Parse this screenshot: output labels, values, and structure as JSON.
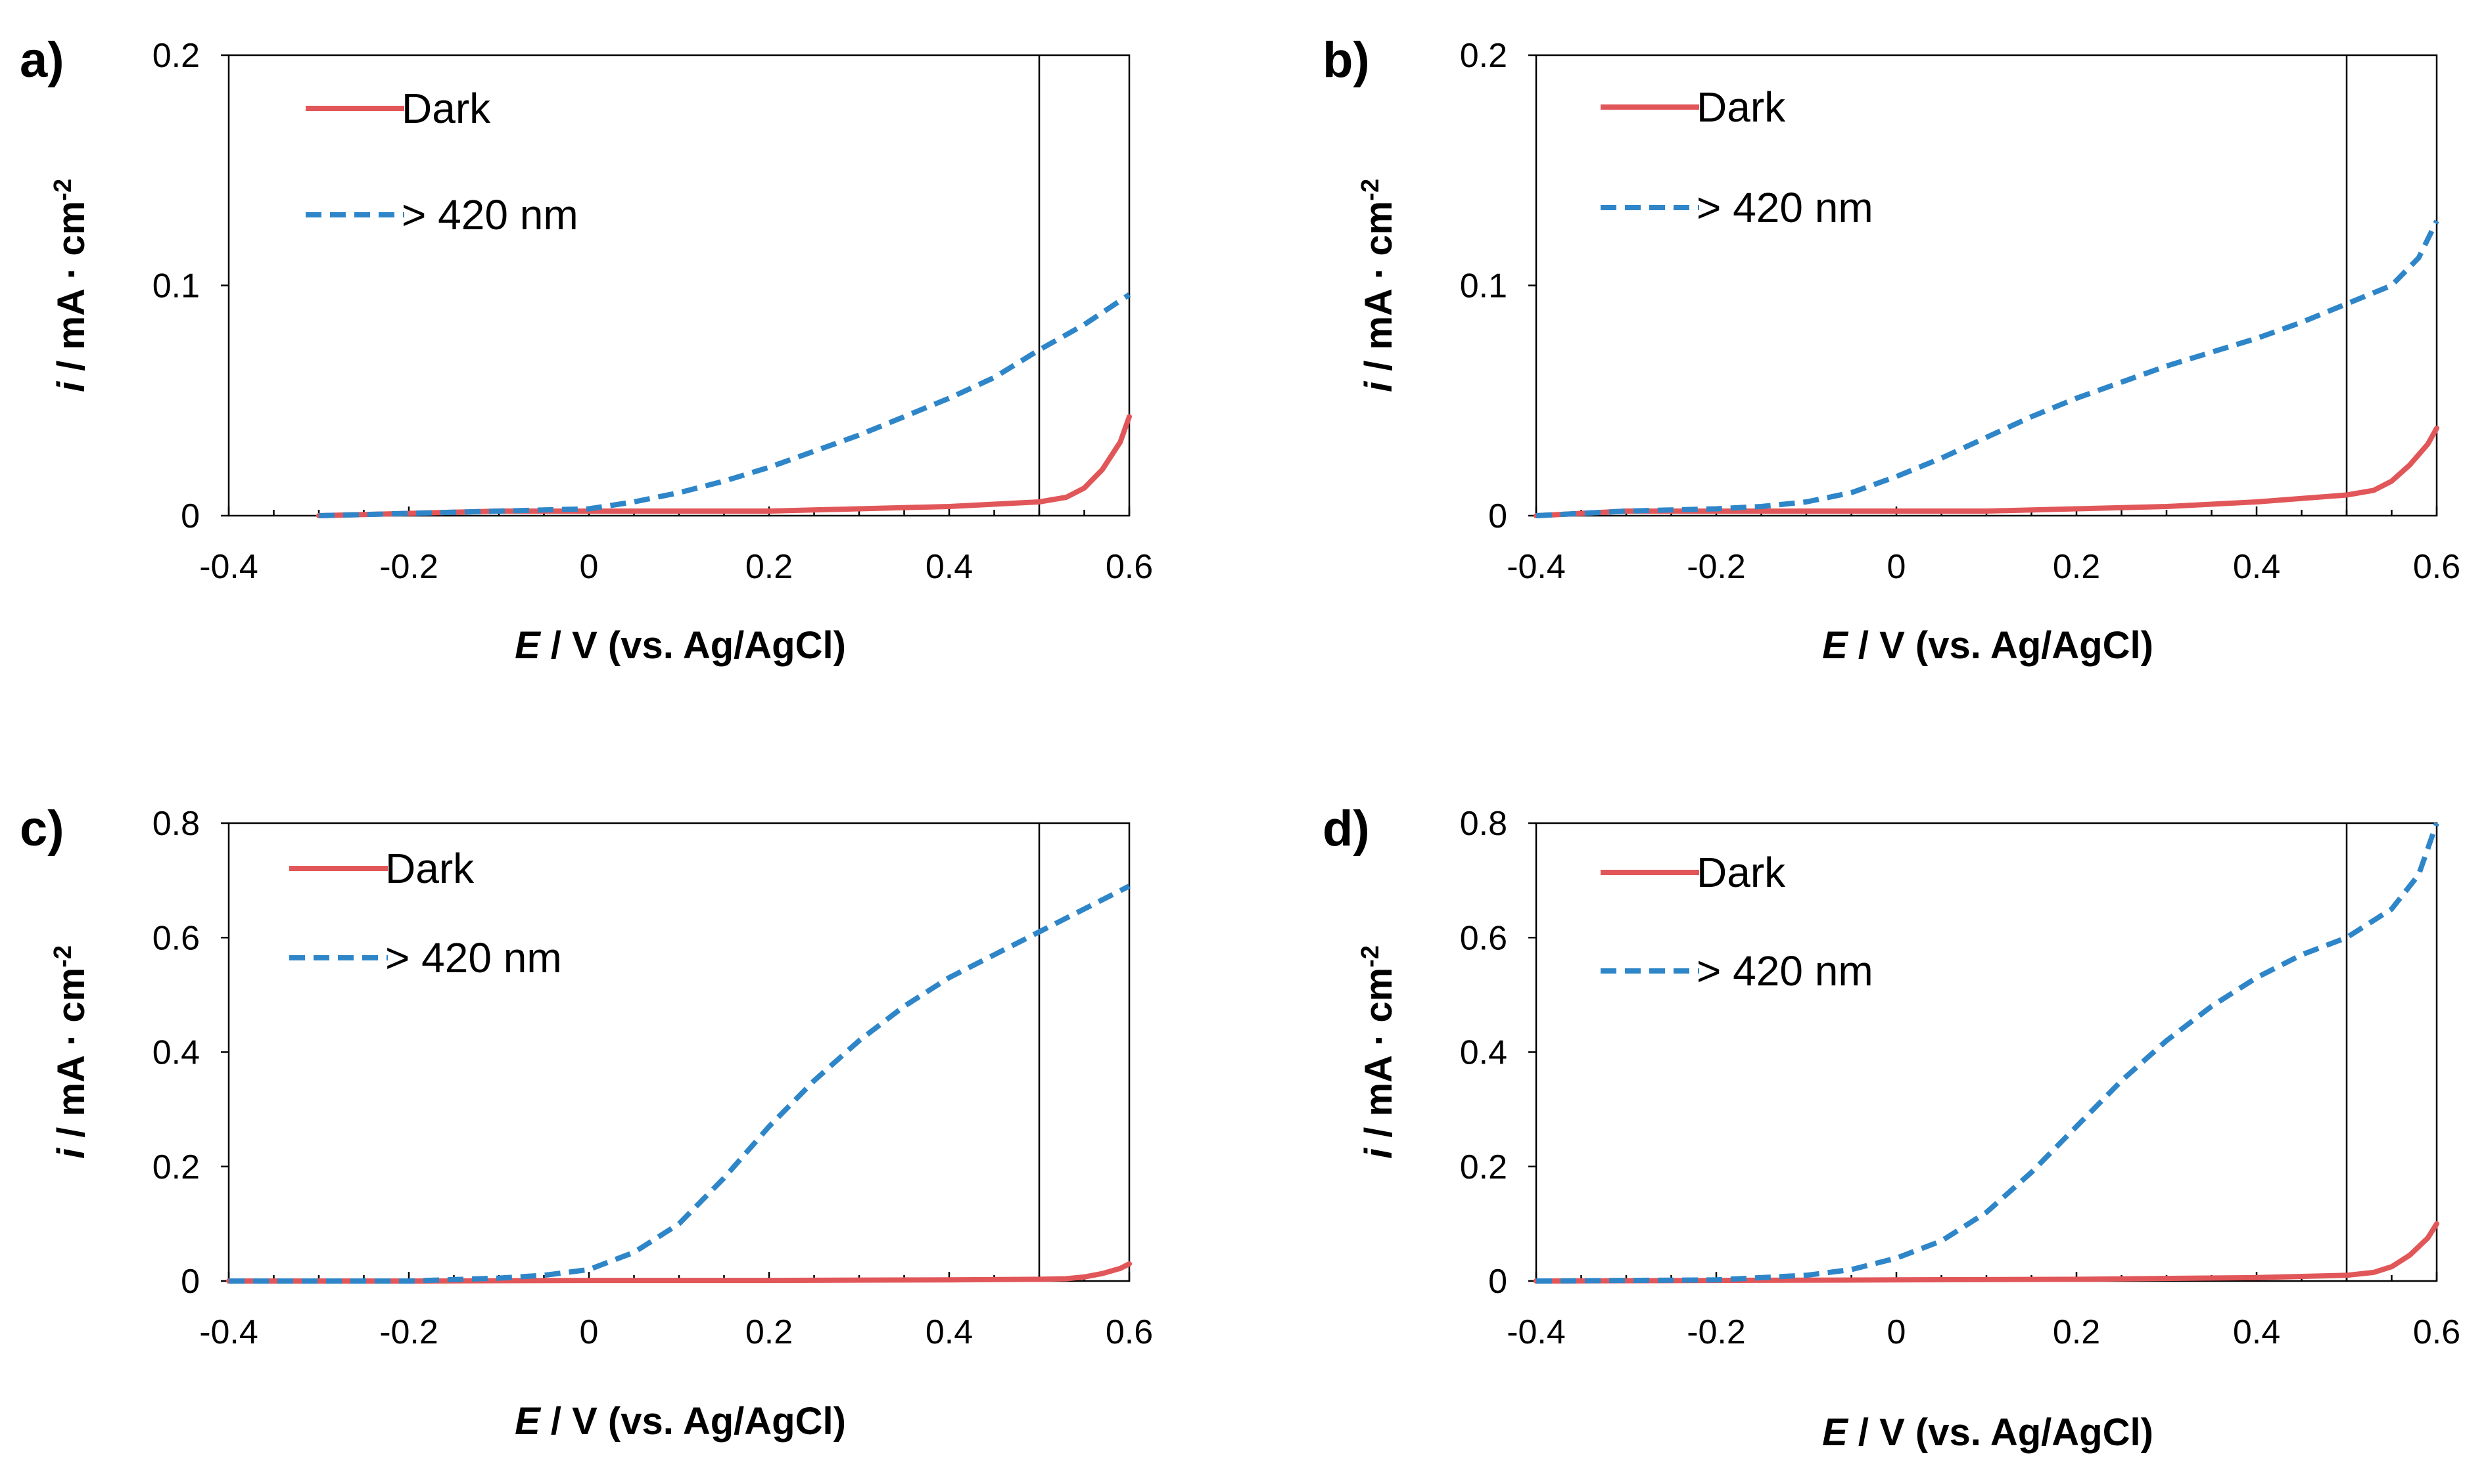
{
  "figure": {
    "colors": {
      "dark": "#E15759",
      "light": "#2E86C9",
      "axis": "#000000"
    },
    "marker_line_label": "E = 0.5 V reference line"
  },
  "chart_data": [
    {
      "panel": "a)",
      "type": "line",
      "xlabel": {
        "italic": "E",
        "rest": " / V (vs. Ag/AgCl)"
      },
      "ylabel": {
        "italic": "i",
        "rest": " / mA · cm",
        "sup": "-2"
      },
      "xlim": [
        -0.4,
        0.6
      ],
      "ylim": [
        0,
        0.2
      ],
      "xticks": [
        "-0.4",
        "-0.2",
        "0",
        "0.2",
        "0.4",
        "0.6"
      ],
      "xtick_values": [
        -0.4,
        -0.2,
        0,
        0.2,
        0.4,
        0.6
      ],
      "yticks": [
        "0",
        "0.1",
        "0.2"
      ],
      "ytick_values": [
        0,
        0.1,
        0.2
      ],
      "vline": 0.5,
      "legend": [
        "Dark",
        "> 420 nm"
      ],
      "series": [
        {
          "name": "Dark",
          "style": "solid",
          "x": [
            -0.3,
            -0.2,
            -0.1,
            0,
            0.1,
            0.2,
            0.3,
            0.4,
            0.45,
            0.5,
            0.53,
            0.55,
            0.57,
            0.59,
            0.6
          ],
          "y": [
            0,
            0.001,
            0.002,
            0.002,
            0.002,
            0.002,
            0.003,
            0.004,
            0.005,
            0.006,
            0.008,
            0.012,
            0.02,
            0.032,
            0.043
          ]
        },
        {
          "name": "> 420 nm",
          "style": "dashed",
          "x": [
            -0.3,
            -0.2,
            -0.1,
            0,
            0.05,
            0.1,
            0.15,
            0.2,
            0.25,
            0.3,
            0.35,
            0.4,
            0.45,
            0.5,
            0.55,
            0.6
          ],
          "y": [
            0,
            0.001,
            0.002,
            0.003,
            0.006,
            0.01,
            0.015,
            0.021,
            0.028,
            0.035,
            0.043,
            0.051,
            0.06,
            0.072,
            0.083,
            0.096
          ]
        }
      ]
    },
    {
      "panel": "b)",
      "type": "line",
      "xlabel": {
        "italic": "E",
        "rest": " / V (vs. Ag/AgCl)"
      },
      "ylabel": {
        "italic": "i",
        "rest": " / mA · cm",
        "sup": "-2"
      },
      "xlim": [
        -0.4,
        0.6
      ],
      "ylim": [
        0,
        0.2
      ],
      "xticks": [
        "-0.4",
        "-0.2",
        "0",
        "0.2",
        "0.4",
        "0.6"
      ],
      "xtick_values": [
        -0.4,
        -0.2,
        0,
        0.2,
        0.4,
        0.6
      ],
      "yticks": [
        "0",
        "0.1",
        "0.2"
      ],
      "ytick_values": [
        0,
        0.1,
        0.2
      ],
      "vline": 0.5,
      "legend": [
        "Dark",
        "> 420 nm"
      ],
      "series": [
        {
          "name": "Dark",
          "style": "solid",
          "x": [
            -0.4,
            -0.3,
            -0.2,
            -0.1,
            0,
            0.1,
            0.2,
            0.3,
            0.4,
            0.5,
            0.53,
            0.55,
            0.57,
            0.59,
            0.6
          ],
          "y": [
            0,
            0.002,
            0.002,
            0.002,
            0.002,
            0.002,
            0.003,
            0.004,
            0.006,
            0.009,
            0.011,
            0.015,
            0.022,
            0.031,
            0.038
          ]
        },
        {
          "name": "> 420 nm",
          "style": "dashed",
          "x": [
            -0.4,
            -0.3,
            -0.2,
            -0.15,
            -0.1,
            -0.05,
            0,
            0.05,
            0.1,
            0.15,
            0.2,
            0.25,
            0.3,
            0.35,
            0.4,
            0.45,
            0.5,
            0.55,
            0.58,
            0.6
          ],
          "y": [
            0,
            0.002,
            0.003,
            0.004,
            0.006,
            0.01,
            0.017,
            0.025,
            0.034,
            0.043,
            0.051,
            0.058,
            0.065,
            0.071,
            0.077,
            0.084,
            0.092,
            0.1,
            0.112,
            0.128
          ]
        }
      ]
    },
    {
      "panel": "c)",
      "type": "line",
      "xlabel": {
        "italic": "E",
        "rest": " / V (vs. Ag/AgCl)"
      },
      "ylabel": {
        "italic": "i",
        "rest": " / mA · cm",
        "sup": "-2"
      },
      "xlim": [
        -0.4,
        0.6
      ],
      "ylim": [
        0,
        0.8
      ],
      "xticks": [
        "-0.4",
        "-0.2",
        "0",
        "0.2",
        "0.4",
        "0.6"
      ],
      "xtick_values": [
        -0.4,
        -0.2,
        0,
        0.2,
        0.4,
        0.6
      ],
      "yticks": [
        "0",
        "0.2",
        "0.4",
        "0.6",
        "0.8"
      ],
      "ytick_values": [
        0,
        0.2,
        0.4,
        0.6,
        0.8
      ],
      "vline": 0.5,
      "legend": [
        "Dark",
        "> 420 nm"
      ],
      "series": [
        {
          "name": "Dark",
          "style": "solid",
          "x": [
            -0.4,
            -0.2,
            0,
            0.2,
            0.4,
            0.5,
            0.53,
            0.55,
            0.57,
            0.59,
            0.6
          ],
          "y": [
            0,
            0,
            0.001,
            0.001,
            0.002,
            0.003,
            0.004,
            0.007,
            0.013,
            0.022,
            0.03
          ]
        },
        {
          "name": "> 420 nm",
          "style": "dashed",
          "x": [
            -0.4,
            -0.2,
            -0.1,
            -0.05,
            0,
            0.05,
            0.1,
            0.15,
            0.2,
            0.25,
            0.3,
            0.35,
            0.4,
            0.45,
            0.5,
            0.55,
            0.6
          ],
          "y": [
            0,
            0,
            0.005,
            0.01,
            0.02,
            0.05,
            0.1,
            0.18,
            0.27,
            0.35,
            0.42,
            0.48,
            0.53,
            0.57,
            0.61,
            0.65,
            0.69
          ]
        }
      ]
    },
    {
      "panel": "d)",
      "type": "line",
      "xlabel": {
        "italic": "E",
        "rest": " / V (vs. Ag/AgCl)"
      },
      "ylabel": {
        "italic": "i",
        "rest": " / mA · cm",
        "sup": "-2"
      },
      "xlim": [
        -0.4,
        0.6
      ],
      "ylim": [
        0,
        0.8
      ],
      "xticks": [
        "-0.4",
        "-0.2",
        "0",
        "0.2",
        "0.4",
        "0.6"
      ],
      "xtick_values": [
        -0.4,
        -0.2,
        0,
        0.2,
        0.4,
        0.6
      ],
      "yticks": [
        "0",
        "0.2",
        "0.4",
        "0.6",
        "0.8"
      ],
      "ytick_values": [
        0,
        0.2,
        0.4,
        0.6,
        0.8
      ],
      "vline": 0.5,
      "legend": [
        "Dark",
        "> 420 nm"
      ],
      "series": [
        {
          "name": "Dark",
          "style": "solid",
          "x": [
            -0.4,
            -0.2,
            0,
            0.2,
            0.4,
            0.5,
            0.53,
            0.55,
            0.57,
            0.59,
            0.6
          ],
          "y": [
            0,
            0.001,
            0.002,
            0.003,
            0.006,
            0.01,
            0.015,
            0.025,
            0.045,
            0.075,
            0.1
          ]
        },
        {
          "name": "> 420 nm",
          "style": "dashed",
          "x": [
            -0.4,
            -0.2,
            -0.1,
            -0.05,
            0,
            0.05,
            0.1,
            0.15,
            0.2,
            0.25,
            0.3,
            0.35,
            0.4,
            0.45,
            0.5,
            0.55,
            0.58,
            0.6
          ],
          "y": [
            0,
            0.002,
            0.01,
            0.02,
            0.04,
            0.07,
            0.12,
            0.19,
            0.27,
            0.35,
            0.42,
            0.48,
            0.53,
            0.57,
            0.6,
            0.65,
            0.71,
            0.8
          ]
        }
      ]
    }
  ]
}
